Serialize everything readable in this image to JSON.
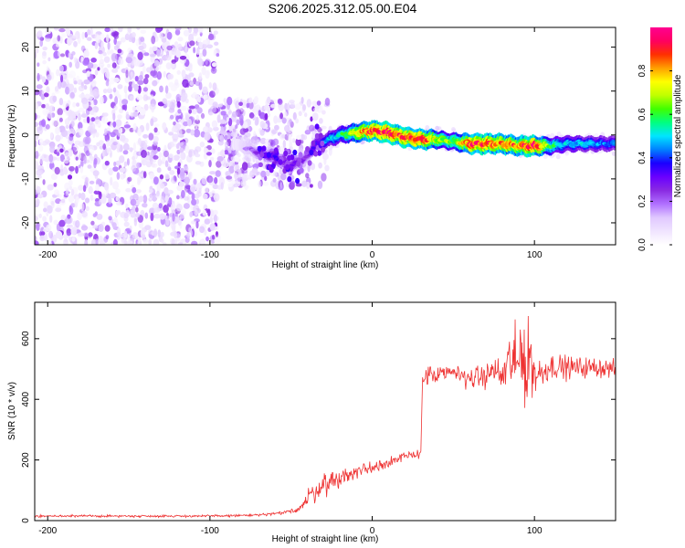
{
  "figure_title": "S206.2025.312.05.00.E04",
  "chart_data": [
    {
      "type": "heatmap",
      "title": "S206.2025.312.05.00.E04",
      "xlabel": "Height of straight line (km)",
      "ylabel": "Frequency (Hz)",
      "xlim": [
        -208,
        150
      ],
      "ylim": [
        -25,
        24.5
      ],
      "x_ticks": [
        -200,
        -100,
        0,
        100
      ],
      "y_ticks": [
        -20,
        -10,
        0,
        10,
        20
      ],
      "colorbar": {
        "label": "Normalized spectral amplitude",
        "range": [
          0,
          1
        ],
        "ticks": [
          0.0,
          0.2,
          0.4,
          0.6,
          0.8
        ],
        "colormap": [
          "#ffffff",
          "#f0e4ff",
          "#e0c8ff",
          "#b070ff",
          "#8a2be2",
          "#6a00ff",
          "#1a00ff",
          "#0080ff",
          "#00e5ff",
          "#00ff80",
          "#40ff00",
          "#c0ff00",
          "#ffff00",
          "#ffa000",
          "#ff3000",
          "#ff0060",
          "#ff0090"
        ]
      },
      "noise_region_x": [
        -208,
        -50
      ],
      "signal_track": {
        "x": [
          -85,
          -70,
          -60,
          -50,
          -40,
          -35,
          -30,
          -20,
          -10,
          0,
          10,
          20,
          30,
          40,
          50,
          60,
          70,
          80,
          90,
          100,
          110,
          120,
          130,
          140,
          150
        ],
        "frequency": [
          -2,
          -4,
          -5,
          -7,
          -5,
          -2,
          -1.5,
          0,
          0.5,
          1,
          0.5,
          -0.5,
          -1,
          -1,
          -1.5,
          -2,
          -2,
          -2,
          -2.5,
          -2.5,
          -2.5,
          -2,
          -2,
          -2,
          -2
        ],
        "peak_amplitude": [
          0.1,
          0.25,
          0.35,
          0.3,
          0.25,
          0.35,
          0.45,
          0.55,
          0.75,
          0.9,
          0.95,
          0.9,
          0.95,
          0.7,
          0.65,
          0.9,
          0.9,
          0.85,
          0.85,
          0.95,
          0.6,
          0.5,
          0.5,
          0.45,
          0.45
        ]
      }
    },
    {
      "type": "line",
      "xlabel": "Height of straight line (km)",
      "ylabel": "SNR (10 * v/v)",
      "xlim": [
        -208,
        150
      ],
      "ylim": [
        0,
        720
      ],
      "x_ticks": [
        -200,
        -100,
        0,
        100
      ],
      "y_ticks": [
        0,
        200,
        400,
        600
      ],
      "series": [
        {
          "name": "SNR",
          "color": "#ee3333",
          "x": [
            -208,
            -150,
            -100,
            -70,
            -55,
            -45,
            -40,
            -35,
            -30,
            -25,
            -20,
            -15,
            -10,
            -5,
            0,
            5,
            10,
            15,
            20,
            25,
            30,
            31,
            35,
            40,
            50,
            60,
            70,
            75,
            80,
            85,
            90,
            92,
            95,
            97,
            100,
            105,
            110,
            120,
            130,
            140,
            150
          ],
          "values": [
            15,
            15,
            15,
            18,
            25,
            40,
            70,
            100,
            120,
            130,
            140,
            150,
            160,
            170,
            175,
            185,
            195,
            200,
            210,
            215,
            225,
            470,
            480,
            475,
            490,
            470,
            475,
            500,
            470,
            530,
            500,
            620,
            450,
            560,
            480,
            490,
            510,
            505,
            505,
            505,
            500
          ],
          "noise_amplitude": [
            4,
            4,
            4,
            5,
            6,
            15,
            35,
            40,
            40,
            35,
            35,
            30,
            30,
            28,
            25,
            25,
            22,
            20,
            18,
            18,
            15,
            25,
            35,
            35,
            35,
            35,
            40,
            45,
            60,
            110,
            140,
            150,
            160,
            130,
            80,
            50,
            45,
            40,
            35,
            35,
            30
          ]
        }
      ]
    }
  ]
}
